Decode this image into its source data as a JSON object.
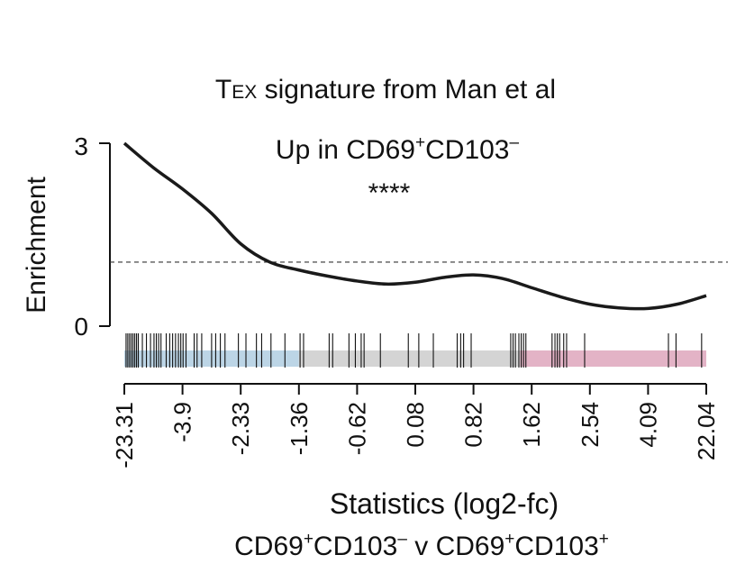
{
  "chart_data": {
    "type": "line",
    "title": {
      "main": "T",
      "sub": "EX",
      "rest": " signature from Man et al"
    },
    "annotation": {
      "prefix": "Up in CD69",
      "sup1": "+",
      "mid": "CD103",
      "sup2": "–",
      "stars": "****"
    },
    "ylabel": "Enrichment",
    "ylim": [
      0,
      3
    ],
    "yticks": [
      "0",
      "3"
    ],
    "reference_line": 1.05,
    "xlabel": {
      "main": "Statistics (",
      "inner": "log2-fc",
      "close": ")"
    },
    "xlabel2": {
      "a": "CD69",
      "a_sup": "+",
      "b": "CD103",
      "b_sup": "–",
      "v": " v ",
      "c": "CD69",
      "c_sup": "+",
      "d": "CD103",
      "d_sup": "+"
    },
    "xticks": [
      "-23.31",
      "-3.9",
      "-2.33",
      "-1.36",
      "-0.62",
      "0.08",
      "0.82",
      "1.62",
      "2.54",
      "4.09",
      "22.04"
    ],
    "x": [
      0,
      0.05,
      0.1,
      0.15,
      0.2,
      0.25,
      0.3,
      0.35,
      0.4,
      0.45,
      0.5,
      0.55,
      0.6,
      0.65,
      0.7,
      0.75,
      0.8,
      0.85,
      0.9,
      0.95,
      1.0
    ],
    "series": [
      {
        "values": [
          3.0,
          2.6,
          2.25,
          1.85,
          1.35,
          1.05,
          0.92,
          0.82,
          0.74,
          0.69,
          0.72,
          0.8,
          0.84,
          0.78,
          0.63,
          0.48,
          0.36,
          0.3,
          0.29,
          0.36,
          0.5
        ]
      }
    ],
    "rug_positions": [
      0.003,
      0.006,
      0.009,
      0.012,
      0.015,
      0.018,
      0.021,
      0.024,
      0.031,
      0.038,
      0.045,
      0.051,
      0.055,
      0.059,
      0.063,
      0.072,
      0.078,
      0.083,
      0.088,
      0.093,
      0.097,
      0.101,
      0.106,
      0.12,
      0.125,
      0.133,
      0.15,
      0.157,
      0.165,
      0.173,
      0.196,
      0.209,
      0.227,
      0.236,
      0.252,
      0.276,
      0.302,
      0.308,
      0.352,
      0.358,
      0.386,
      0.397,
      0.407,
      0.412,
      0.44,
      0.488,
      0.506,
      0.531,
      0.572,
      0.578,
      0.583,
      0.596,
      0.664,
      0.668,
      0.672,
      0.678,
      0.682,
      0.686,
      0.69,
      0.735,
      0.74,
      0.744,
      0.748,
      0.755,
      0.76,
      0.791,
      0.935,
      0.948,
      0.992
    ],
    "bands": [
      {
        "from": 0.0,
        "to": 0.3,
        "color": "#bcd5e6"
      },
      {
        "from": 0.3,
        "to": 0.68,
        "color": "#d4d4d4"
      },
      {
        "from": 0.68,
        "to": 1.0,
        "color": "#e3b3c6"
      }
    ],
    "line_color": "#1a1a1a"
  }
}
